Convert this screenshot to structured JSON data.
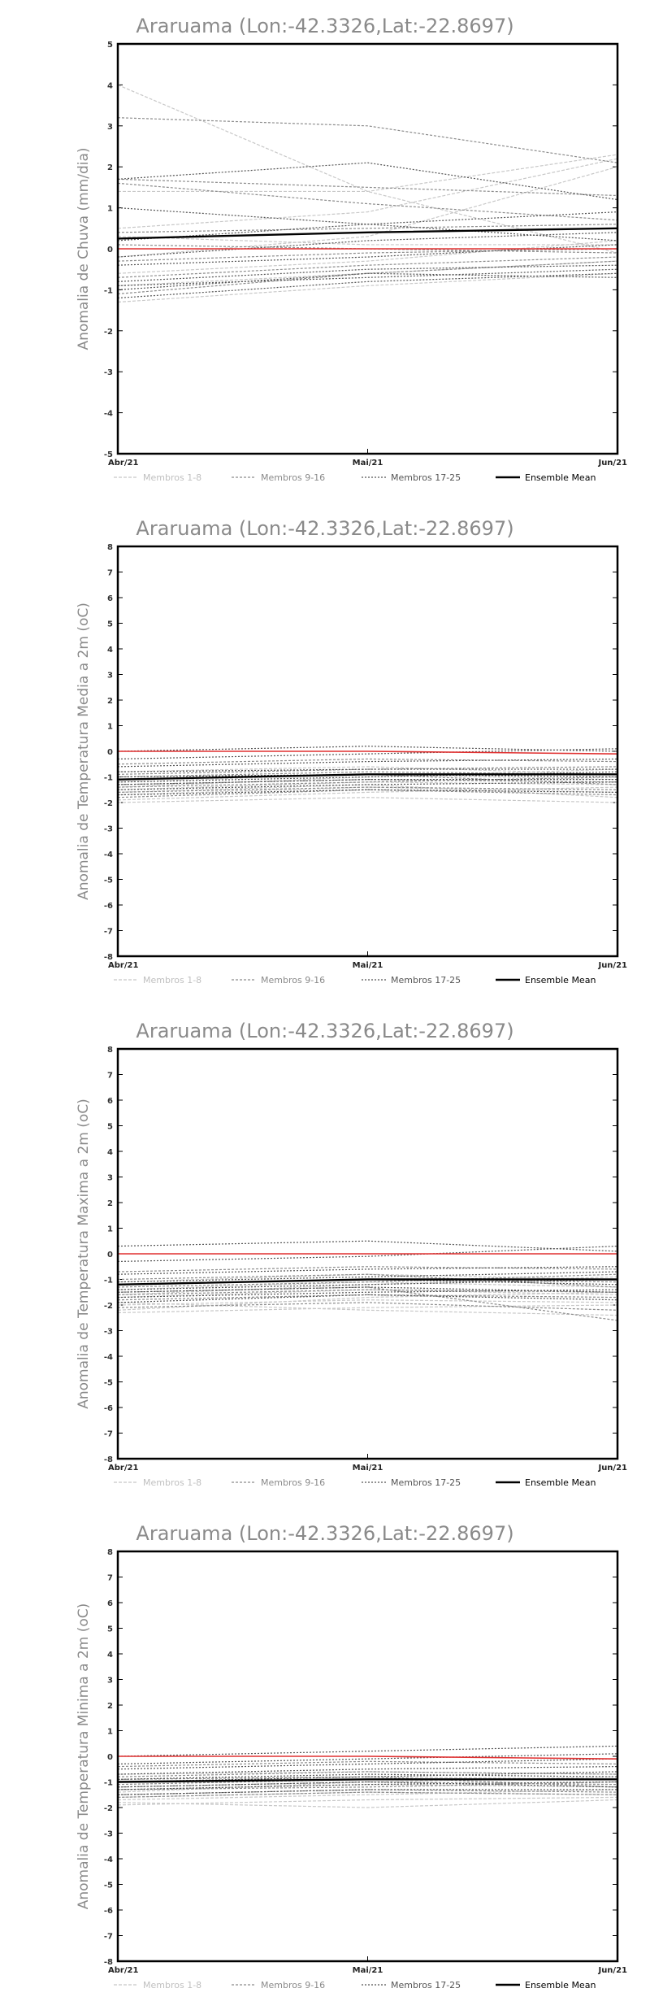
{
  "colors": {
    "members_1_8": "#c8c8c8",
    "members_9_16": "#8c8c8c",
    "members_17_25": "#555555",
    "ensemble_mean": "#000000",
    "climatology_zero": "#e03030",
    "frame": "#000000",
    "title_text": "#8a8a8a"
  },
  "legend": {
    "members_1_8": "Membros 1-8",
    "members_9_16": "Membros 9-16",
    "members_17_25": "Membros 17-25",
    "ensemble_mean": "Ensemble Mean"
  },
  "chart_data": [
    {
      "type": "line",
      "title": "Araruama (Lon:-42.3326,Lat:-22.8697)",
      "ylabel": "Anomalia de Chuva (mm/dia)",
      "xlabel": "",
      "categories": [
        "Abr/21",
        "Mai/21",
        "Jun/21"
      ],
      "ylim": [
        -5,
        5
      ],
      "yticks": [
        -5,
        -4,
        -3,
        -2,
        -1,
        0,
        1,
        2,
        3,
        4,
        5
      ],
      "grid": false,
      "legend_position": "bottom",
      "series": [
        {
          "group": "members_1_8",
          "values": [
            4.0,
            1.4,
            -0.1
          ]
        },
        {
          "group": "members_1_8",
          "values": [
            1.4,
            1.4,
            2.3
          ]
        },
        {
          "group": "members_1_8",
          "values": [
            0.5,
            0.9,
            2.2
          ]
        },
        {
          "group": "members_1_8",
          "values": [
            -0.2,
            0.3,
            2.0
          ]
        },
        {
          "group": "members_1_8",
          "values": [
            0.3,
            0.1,
            0.1
          ]
        },
        {
          "group": "members_1_8",
          "values": [
            -0.6,
            -0.3,
            0.2
          ]
        },
        {
          "group": "members_1_8",
          "values": [
            -1.3,
            -0.9,
            -0.6
          ]
        },
        {
          "group": "members_1_8",
          "values": [
            -0.9,
            -0.6,
            -0.3
          ]
        },
        {
          "group": "members_9_16",
          "values": [
            3.2,
            3.0,
            2.1
          ]
        },
        {
          "group": "members_9_16",
          "values": [
            1.6,
            1.1,
            0.7
          ]
        },
        {
          "group": "members_9_16",
          "values": [
            1.7,
            1.5,
            1.3
          ]
        },
        {
          "group": "members_9_16",
          "values": [
            0.4,
            0.5,
            0.6
          ]
        },
        {
          "group": "members_9_16",
          "values": [
            0.1,
            0.0,
            -0.1
          ]
        },
        {
          "group": "members_9_16",
          "values": [
            -0.3,
            -0.1,
            0.0
          ]
        },
        {
          "group": "members_9_16",
          "values": [
            -0.7,
            -0.4,
            -0.2
          ]
        },
        {
          "group": "members_9_16",
          "values": [
            -1.1,
            -0.6,
            -0.3
          ]
        },
        {
          "group": "members_17_25",
          "values": [
            1.7,
            2.1,
            1.2
          ]
        },
        {
          "group": "members_17_25",
          "values": [
            1.0,
            0.6,
            0.2
          ]
        },
        {
          "group": "members_17_25",
          "values": [
            0.2,
            0.6,
            0.9
          ]
        },
        {
          "group": "members_17_25",
          "values": [
            -0.2,
            0.2,
            0.4
          ]
        },
        {
          "group": "members_17_25",
          "values": [
            -0.4,
            -0.2,
            0.1
          ]
        },
        {
          "group": "members_17_25",
          "values": [
            -0.8,
            -0.5,
            -0.4
          ]
        },
        {
          "group": "members_17_25",
          "values": [
            -0.9,
            -0.7,
            -0.5
          ]
        },
        {
          "group": "members_17_25",
          "values": [
            -1.2,
            -0.8,
            -0.6
          ]
        },
        {
          "group": "members_17_25",
          "values": [
            -1.0,
            -0.6,
            -0.7
          ]
        },
        {
          "group": "ensemble_mean",
          "values": [
            0.25,
            0.4,
            0.5
          ]
        },
        {
          "group": "climatology_zero",
          "values": [
            0.0,
            0.0,
            0.0
          ]
        }
      ]
    },
    {
      "type": "line",
      "title": "Araruama (Lon:-42.3326,Lat:-22.8697)",
      "ylabel": "Anomalia de Temperatura Media a 2m (oC)",
      "xlabel": "",
      "categories": [
        "Abr/21",
        "Mai/21",
        "Jun/21"
      ],
      "ylim": [
        -8,
        8
      ],
      "yticks": [
        -8,
        -7,
        -6,
        -5,
        -4,
        -3,
        -2,
        -1,
        0,
        1,
        2,
        3,
        4,
        5,
        6,
        7,
        8
      ],
      "grid": false,
      "legend_position": "bottom",
      "series": [
        {
          "group": "members_1_8",
          "values": [
            -2.0,
            -1.8,
            -2.0
          ]
        },
        {
          "group": "members_1_8",
          "values": [
            -1.7,
            -1.4,
            -1.6
          ]
        },
        {
          "group": "members_1_8",
          "values": [
            -1.5,
            -1.2,
            -1.3
          ]
        },
        {
          "group": "members_1_8",
          "values": [
            -1.2,
            -0.9,
            -1.1
          ]
        },
        {
          "group": "members_1_8",
          "values": [
            -0.8,
            -0.6,
            -0.9
          ]
        },
        {
          "group": "members_1_8",
          "values": [
            -1.9,
            -1.6,
            -1.4
          ]
        },
        {
          "group": "members_1_8",
          "values": [
            -1.4,
            -1.0,
            -0.7
          ]
        },
        {
          "group": "members_1_8",
          "values": [
            -1.6,
            -1.3,
            -1.8
          ]
        },
        {
          "group": "members_9_16",
          "values": [
            -1.8,
            -1.5,
            -1.7
          ]
        },
        {
          "group": "members_9_16",
          "values": [
            -1.3,
            -1.1,
            -1.2
          ]
        },
        {
          "group": "members_9_16",
          "values": [
            -1.0,
            -0.8,
            -0.9
          ]
        },
        {
          "group": "members_9_16",
          "values": [
            -0.5,
            -0.3,
            -0.4
          ]
        },
        {
          "group": "members_9_16",
          "values": [
            -1.6,
            -1.4,
            -1.5
          ]
        },
        {
          "group": "members_9_16",
          "values": [
            -0.9,
            -0.7,
            -0.6
          ]
        },
        {
          "group": "members_9_16",
          "values": [
            -1.4,
            -1.2,
            -1.0
          ]
        },
        {
          "group": "members_9_16",
          "values": [
            -1.1,
            -0.9,
            -1.3
          ]
        },
        {
          "group": "members_17_25",
          "values": [
            0.0,
            0.2,
            0.0
          ]
        },
        {
          "group": "members_17_25",
          "values": [
            -0.6,
            -0.4,
            -0.3
          ]
        },
        {
          "group": "members_17_25",
          "values": [
            -1.2,
            -1.0,
            -0.8
          ]
        },
        {
          "group": "members_17_25",
          "values": [
            -1.5,
            -1.3,
            -1.2
          ]
        },
        {
          "group": "members_17_25",
          "values": [
            -1.0,
            -0.9,
            -1.0
          ]
        },
        {
          "group": "members_17_25",
          "values": [
            -0.3,
            -0.1,
            0.1
          ]
        },
        {
          "group": "members_17_25",
          "values": [
            -1.3,
            -1.1,
            -1.1
          ]
        },
        {
          "group": "members_17_25",
          "values": [
            -0.8,
            -0.7,
            -0.7
          ]
        },
        {
          "group": "members_17_25",
          "values": [
            -1.7,
            -1.5,
            -1.6
          ]
        },
        {
          "group": "ensemble_mean",
          "values": [
            -1.1,
            -0.9,
            -0.9
          ]
        },
        {
          "group": "climatology_zero",
          "values": [
            0.0,
            0.0,
            -0.1
          ]
        }
      ]
    },
    {
      "type": "line",
      "title": "Araruama (Lon:-42.3326,Lat:-22.8697)",
      "ylabel": "Anomalia de Temperatura Maxima a 2m (oC)",
      "xlabel": "",
      "categories": [
        "Abr/21",
        "Mai/21",
        "Jun/21"
      ],
      "ylim": [
        -8,
        8
      ],
      "yticks": [
        -8,
        -7,
        -6,
        -5,
        -4,
        -3,
        -2,
        -1,
        0,
        1,
        2,
        3,
        4,
        5,
        6,
        7,
        8
      ],
      "grid": false,
      "legend_position": "bottom",
      "series": [
        {
          "group": "members_1_8",
          "values": [
            -2.3,
            -2.1,
            -2.0
          ]
        },
        {
          "group": "members_1_8",
          "values": [
            -2.0,
            -1.8,
            -1.9
          ]
        },
        {
          "group": "members_1_8",
          "values": [
            -1.7,
            -1.4,
            -1.6
          ]
        },
        {
          "group": "members_1_8",
          "values": [
            -1.4,
            -1.1,
            -1.3
          ]
        },
        {
          "group": "members_1_8",
          "values": [
            -1.9,
            -2.2,
            -2.4
          ]
        },
        {
          "group": "members_1_8",
          "values": [
            -1.1,
            -0.8,
            -1.0
          ]
        },
        {
          "group": "members_1_8",
          "values": [
            -2.2,
            -1.7,
            -1.5
          ]
        },
        {
          "group": "members_1_8",
          "values": [
            -1.6,
            -1.2,
            -0.9
          ]
        },
        {
          "group": "members_9_16",
          "values": [
            -2.1,
            -1.9,
            -2.2
          ]
        },
        {
          "group": "members_9_16",
          "values": [
            -1.6,
            -1.4,
            -1.5
          ]
        },
        {
          "group": "members_9_16",
          "values": [
            -1.2,
            -1.0,
            -1.1
          ]
        },
        {
          "group": "members_9_16",
          "values": [
            -0.7,
            -0.5,
            -0.6
          ]
        },
        {
          "group": "members_9_16",
          "values": [
            -1.8,
            -1.6,
            -1.7
          ]
        },
        {
          "group": "members_9_16",
          "values": [
            -1.3,
            -1.1,
            -0.8
          ]
        },
        {
          "group": "members_9_16",
          "values": [
            -1.5,
            -1.3,
            -2.6
          ]
        },
        {
          "group": "members_9_16",
          "values": [
            -1.0,
            -0.8,
            -1.3
          ]
        },
        {
          "group": "members_17_25",
          "values": [
            0.3,
            0.5,
            0.1
          ]
        },
        {
          "group": "members_17_25",
          "values": [
            -0.3,
            -0.1,
            0.3
          ]
        },
        {
          "group": "members_17_25",
          "values": [
            -1.1,
            -0.9,
            -0.7
          ]
        },
        {
          "group": "members_17_25",
          "values": [
            -1.4,
            -1.2,
            -1.0
          ]
        },
        {
          "group": "members_17_25",
          "values": [
            -1.7,
            -1.5,
            -1.4
          ]
        },
        {
          "group": "members_17_25",
          "values": [
            -0.8,
            -0.6,
            -0.5
          ]
        },
        {
          "group": "members_17_25",
          "values": [
            -1.2,
            -1.0,
            -1.2
          ]
        },
        {
          "group": "members_17_25",
          "values": [
            -1.5,
            -1.3,
            -1.5
          ]
        },
        {
          "group": "members_17_25",
          "values": [
            -1.9,
            -1.6,
            -1.8
          ]
        },
        {
          "group": "ensemble_mean",
          "values": [
            -1.2,
            -1.0,
            -1.0
          ]
        },
        {
          "group": "climatology_zero",
          "values": [
            0.0,
            0.0,
            0.0
          ]
        }
      ]
    },
    {
      "type": "line",
      "title": "Araruama (Lon:-42.3326,Lat:-22.8697)",
      "ylabel": "Anomalia de Temperatura Minima a 2m (oC)",
      "xlabel": "",
      "categories": [
        "Abr/21",
        "Mai/21",
        "Jun/21"
      ],
      "ylim": [
        -8,
        8
      ],
      "yticks": [
        -8,
        -7,
        -6,
        -5,
        -4,
        -3,
        -2,
        -1,
        0,
        1,
        2,
        3,
        4,
        5,
        6,
        7,
        8
      ],
      "grid": false,
      "legend_position": "bottom",
      "series": [
        {
          "group": "members_1_8",
          "values": [
            -1.9,
            -1.7,
            -1.6
          ]
        },
        {
          "group": "members_1_8",
          "values": [
            -1.6,
            -1.4,
            -1.5
          ]
        },
        {
          "group": "members_1_8",
          "values": [
            -1.3,
            -1.1,
            -1.2
          ]
        },
        {
          "group": "members_1_8",
          "values": [
            -1.0,
            -0.8,
            -0.9
          ]
        },
        {
          "group": "members_1_8",
          "values": [
            -1.7,
            -1.5,
            -1.3
          ]
        },
        {
          "group": "members_1_8",
          "values": [
            -1.4,
            -1.0,
            -0.8
          ]
        },
        {
          "group": "members_1_8",
          "values": [
            -0.7,
            -0.6,
            -0.7
          ]
        },
        {
          "group": "members_1_8",
          "values": [
            -1.8,
            -2.0,
            -1.7
          ]
        },
        {
          "group": "members_9_16",
          "values": [
            -1.5,
            -1.3,
            -1.4
          ]
        },
        {
          "group": "members_9_16",
          "values": [
            -1.2,
            -1.0,
            -1.1
          ]
        },
        {
          "group": "members_9_16",
          "values": [
            -0.8,
            -0.6,
            -0.7
          ]
        },
        {
          "group": "members_9_16",
          "values": [
            -0.4,
            -0.2,
            -0.3
          ]
        },
        {
          "group": "members_9_16",
          "values": [
            -1.6,
            -1.4,
            -1.5
          ]
        },
        {
          "group": "members_9_16",
          "values": [
            -1.1,
            -0.9,
            -0.9
          ]
        },
        {
          "group": "members_9_16",
          "values": [
            -1.3,
            -1.2,
            -1.0
          ]
        },
        {
          "group": "members_9_16",
          "values": [
            -0.9,
            -0.8,
            -1.2
          ]
        },
        {
          "group": "members_17_25",
          "values": [
            0.0,
            0.2,
            0.4
          ]
        },
        {
          "group": "members_17_25",
          "values": [
            -0.3,
            -0.1,
            0.1
          ]
        },
        {
          "group": "members_17_25",
          "values": [
            -0.7,
            -0.5,
            -0.4
          ]
        },
        {
          "group": "members_17_25",
          "values": [
            -1.0,
            -0.8,
            -0.6
          ]
        },
        {
          "group": "members_17_25",
          "values": [
            -1.3,
            -1.1,
            -1.0
          ]
        },
        {
          "group": "members_17_25",
          "values": [
            -1.5,
            -1.3,
            -1.3
          ]
        },
        {
          "group": "members_17_25",
          "values": [
            -0.9,
            -0.7,
            -0.8
          ]
        },
        {
          "group": "members_17_25",
          "values": [
            -1.2,
            -1.0,
            -1.2
          ]
        },
        {
          "group": "members_17_25",
          "values": [
            -0.5,
            -0.3,
            -0.1
          ]
        },
        {
          "group": "ensemble_mean",
          "values": [
            -1.0,
            -0.9,
            -0.9
          ]
        },
        {
          "group": "climatology_zero",
          "values": [
            0.0,
            0.0,
            -0.1
          ]
        }
      ]
    }
  ]
}
